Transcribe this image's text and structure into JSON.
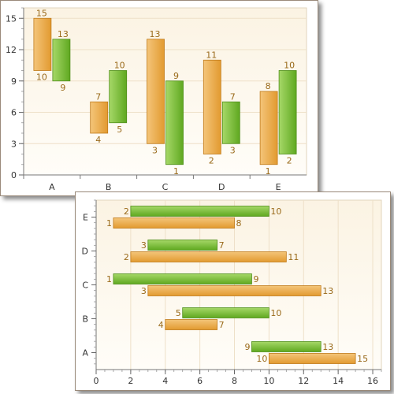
{
  "chart_data": [
    {
      "type": "bar",
      "subtype": "range-column",
      "orientation": "vertical",
      "categories": [
        "A",
        "B",
        "C",
        "D",
        "E"
      ],
      "series": [
        {
          "color": "#e8a84a",
          "low": [
            10,
            4,
            3,
            2,
            1
          ],
          "high": [
            15,
            7,
            13,
            11,
            8
          ]
        },
        {
          "color": "#7cbf3a",
          "low": [
            9,
            5,
            1,
            3,
            2
          ],
          "high": [
            13,
            10,
            9,
            7,
            10
          ]
        }
      ],
      "ylim": [
        0,
        16
      ],
      "yticks": [
        0,
        3,
        6,
        9,
        12,
        15
      ],
      "grid": true
    },
    {
      "type": "bar",
      "subtype": "range-bar",
      "orientation": "horizontal",
      "categories": [
        "A",
        "B",
        "C",
        "D",
        "E"
      ],
      "series": [
        {
          "color": "#e8a84a",
          "low": [
            10,
            4,
            3,
            2,
            1
          ],
          "high": [
            15,
            7,
            13,
            11,
            8
          ]
        },
        {
          "color": "#7cbf3a",
          "low": [
            9,
            5,
            1,
            3,
            2
          ],
          "high": [
            13,
            10,
            9,
            7,
            10
          ]
        }
      ],
      "xlim": [
        0,
        16.5
      ],
      "xticks": [
        0,
        2,
        4,
        6,
        8,
        10,
        12,
        14,
        16
      ],
      "grid": true
    }
  ]
}
